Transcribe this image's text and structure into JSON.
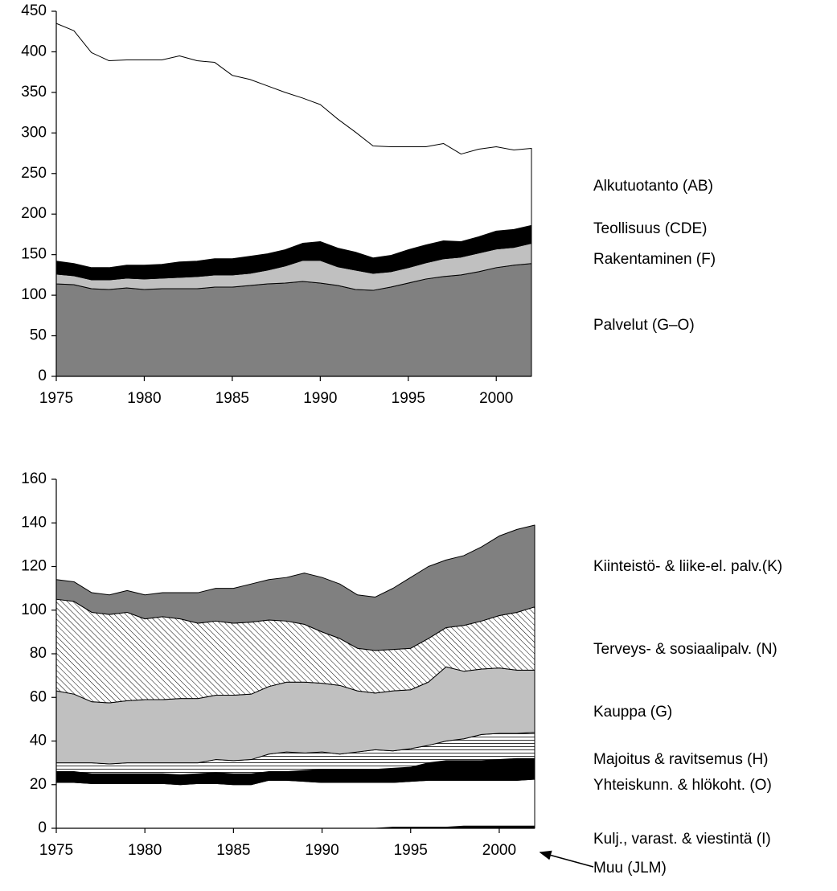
{
  "chart_data": [
    {
      "type": "area",
      "stacked": true,
      "x": [
        1975,
        1976,
        1977,
        1978,
        1979,
        1980,
        1981,
        1982,
        1983,
        1984,
        1985,
        1986,
        1987,
        1988,
        1989,
        1990,
        1991,
        1992,
        1993,
        1994,
        1995,
        1996,
        1997,
        1998,
        1999,
        2000,
        2001,
        2002
      ],
      "xlim": [
        1975,
        2002
      ],
      "xticks": [
        1975,
        1980,
        1985,
        1990,
        1995,
        2000
      ],
      "ylim": [
        0,
        450
      ],
      "yticks": [
        0,
        50,
        100,
        150,
        200,
        250,
        300,
        350,
        400,
        450
      ],
      "series": [
        {
          "name": "Palvelut (G–O)",
          "color": "#808080",
          "values": [
            114,
            113,
            108,
            107,
            109,
            107,
            108,
            108,
            108,
            110,
            110,
            112,
            114,
            115,
            117,
            115,
            112,
            107,
            106,
            110,
            115,
            120,
            123,
            125,
            129,
            134,
            137,
            139
          ]
        },
        {
          "name": "Rakentaminen (F)",
          "color": "#c0c0c0",
          "values": [
            12,
            11,
            11,
            12,
            12,
            13,
            13,
            14,
            15,
            15,
            15,
            15,
            17,
            21,
            26,
            28,
            23,
            24,
            21,
            19,
            19,
            20,
            22,
            22,
            23,
            23,
            22,
            25
          ]
        },
        {
          "name": "Teollisuus (CDE)",
          "color": "#000000",
          "values": [
            16,
            15,
            15,
            15,
            16,
            17,
            17,
            19,
            19,
            20,
            20,
            21,
            20,
            20,
            21,
            23,
            23,
            22,
            19,
            20,
            22,
            22,
            22,
            19,
            20,
            22,
            22,
            22
          ]
        },
        {
          "name": "Alkutuotanto (AB)",
          "color": "#ffffff",
          "values": [
            293,
            287,
            265,
            255,
            253,
            253,
            252,
            254,
            247,
            242,
            226,
            218,
            207,
            194,
            179,
            169,
            159,
            148,
            138,
            134,
            127,
            121,
            120,
            108,
            108,
            104,
            98,
            95
          ]
        }
      ]
    },
    {
      "type": "area",
      "stacked": true,
      "x": [
        1975,
        1976,
        1977,
        1978,
        1979,
        1980,
        1981,
        1982,
        1983,
        1984,
        1985,
        1986,
        1987,
        1988,
        1989,
        1990,
        1991,
        1992,
        1993,
        1994,
        1995,
        1996,
        1997,
        1998,
        1999,
        2000,
        2001,
        2002
      ],
      "xlim": [
        1975,
        2002
      ],
      "xticks": [
        1975,
        1980,
        1985,
        1990,
        1995,
        2000
      ],
      "ylim": [
        0,
        160
      ],
      "yticks": [
        0,
        20,
        40,
        60,
        80,
        100,
        120,
        140,
        160
      ],
      "series": [
        {
          "name": "Muu (JLM)",
          "color": "#000000",
          "values": [
            0,
            0,
            0,
            0,
            0,
            0,
            0,
            0,
            0,
            0,
            0,
            0,
            0,
            0,
            0,
            0,
            0,
            0,
            0,
            0.5,
            0.5,
            0.5,
            0.5,
            1,
            1,
            1,
            1,
            1
          ]
        },
        {
          "name": "Kulj., varast. & viestintä (I)",
          "color": "#ffffff",
          "values": [
            21,
            21,
            20.5,
            20.5,
            20.5,
            20.5,
            20.5,
            20,
            20.5,
            20.5,
            20,
            20,
            22,
            22,
            21.5,
            21,
            21,
            21,
            21,
            20.5,
            21,
            21.5,
            21.5,
            21,
            21,
            21,
            21,
            21.5
          ]
        },
        {
          "name": "Yhteiskunn. & hlökoht. (O)",
          "color": "#000000",
          "values": [
            5,
            5,
            4.5,
            4.5,
            4.5,
            4.5,
            4.5,
            4.5,
            4.5,
            5,
            5,
            5,
            4,
            4,
            5,
            6,
            6,
            6,
            6,
            6.5,
            6.5,
            8,
            9,
            9,
            9,
            9.5,
            10,
            9.5
          ]
        },
        {
          "name": "Majoitus & ravitsemus (H)",
          "color": "#ffffff",
          "pattern": "horizontal",
          "values": [
            4,
            4,
            5,
            4.5,
            5,
            5,
            5,
            5.5,
            5,
            6,
            6,
            6.5,
            8,
            9,
            8,
            8,
            7,
            8,
            9,
            8,
            8.5,
            8,
            9,
            10,
            12,
            12,
            11.5,
            12
          ]
        },
        {
          "name": "Kauppa (G)",
          "color": "#c0c0c0",
          "values": [
            33,
            31.5,
            28,
            28,
            28.5,
            29,
            29,
            29.5,
            29.5,
            29.5,
            30,
            30,
            31,
            32,
            32.5,
            31.5,
            31.5,
            28,
            26,
            27.5,
            27,
            29,
            34,
            31,
            30,
            30,
            29,
            28.5
          ]
        },
        {
          "name": "Terveys- & sosiaalipalv. (N)",
          "color": "#ffffff",
          "pattern": "diagonal",
          "values": [
            42,
            42.5,
            41,
            40.5,
            40.5,
            37,
            38,
            36.5,
            34.5,
            34,
            33,
            33,
            30.5,
            28,
            26.5,
            23.5,
            21.5,
            19.5,
            19.5,
            19,
            19,
            20,
            18,
            21,
            22,
            24,
            26.5,
            29
          ]
        },
        {
          "name": "Kiinteistö- & liike-el. palv.(K)",
          "color": "#808080",
          "values": [
            9,
            9,
            9,
            9,
            10,
            11,
            11,
            12,
            14,
            15,
            16,
            17.5,
            18.5,
            20,
            23.5,
            25,
            25,
            24.5,
            24.5,
            28,
            32.5,
            33,
            31,
            32,
            34,
            36.5,
            38,
            37.5
          ]
        }
      ]
    }
  ]
}
